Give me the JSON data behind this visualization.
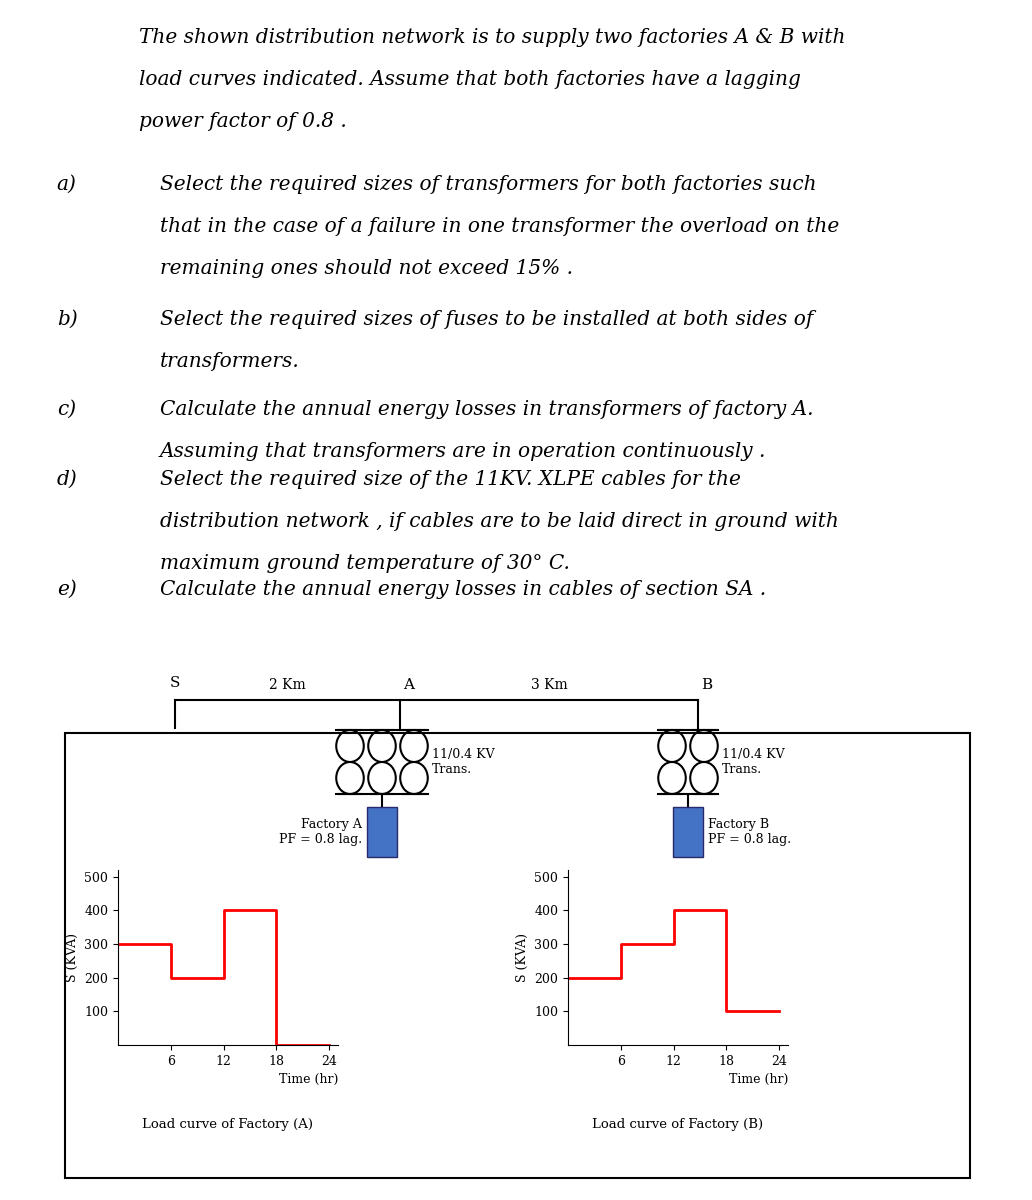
{
  "title_text": [
    "The shown distribution network is to supply two factories A & B with",
    "load curves indicated. Assume that both factories have a lagging",
    "power factor of 0.8 ."
  ],
  "items": [
    {
      "label": "a)",
      "lines": [
        "Select the required sizes of transformers for both factories such",
        "that in the case of a failure in one transformer the overload on the",
        "remaining ones should not exceed 15% ."
      ]
    },
    {
      "label": "b)",
      "lines": [
        "Select the required sizes of fuses to be installed at both sides of",
        "transformers."
      ]
    },
    {
      "label": "c)",
      "lines": [
        "Calculate the annual energy losses in transformers of factory A.",
        "Assuming that transformers are in operation continuously ."
      ]
    },
    {
      "label": "d)",
      "lines": [
        "Select the required size of the 11KV. XLPE cables for the",
        "distribution network , if cables are to be laid direct in ground with",
        "maximum ground temperature of 30° C."
      ]
    },
    {
      "label": "e)",
      "lines": [
        "Calculate the annual energy losses in cables of section SA ."
      ]
    }
  ],
  "diagram": {
    "factory_a_color": "#4472C4",
    "factory_b_color": "#4472C4"
  },
  "load_curve_A": {
    "title": "Load curve of Factory (A)",
    "xlabel": "Time (hr)",
    "ylabel": "S (KVA)",
    "yticks": [
      100,
      200,
      300,
      400,
      500
    ],
    "xticks": [
      6,
      12,
      18,
      24
    ],
    "time": [
      0,
      6,
      12,
      18,
      24
    ],
    "load": [
      300,
      200,
      400,
      0,
      0
    ],
    "color": "#FF0000",
    "xlim": [
      0,
      25
    ],
    "ylim": [
      0,
      520
    ]
  },
  "load_curve_B": {
    "title": "Load curve of Factory (B)",
    "xlabel": "Time (hr)",
    "ylabel": "S (KVA)",
    "yticks": [
      100,
      200,
      300,
      400,
      500
    ],
    "xticks": [
      6,
      12,
      18,
      24
    ],
    "time": [
      0,
      6,
      12,
      18,
      24
    ],
    "load": [
      200,
      300,
      400,
      100,
      100
    ],
    "color": "#FF0000",
    "xlim": [
      0,
      25
    ],
    "ylim": [
      0,
      520
    ]
  },
  "bg_color": "#FFFFFF",
  "text_color": "#000000",
  "font_family": "DejaVu Serif",
  "font_size_body": 14.5,
  "line_height_pts": 28,
  "title_indent": 0.135,
  "label_indent": 0.055,
  "content_indent": 0.155
}
